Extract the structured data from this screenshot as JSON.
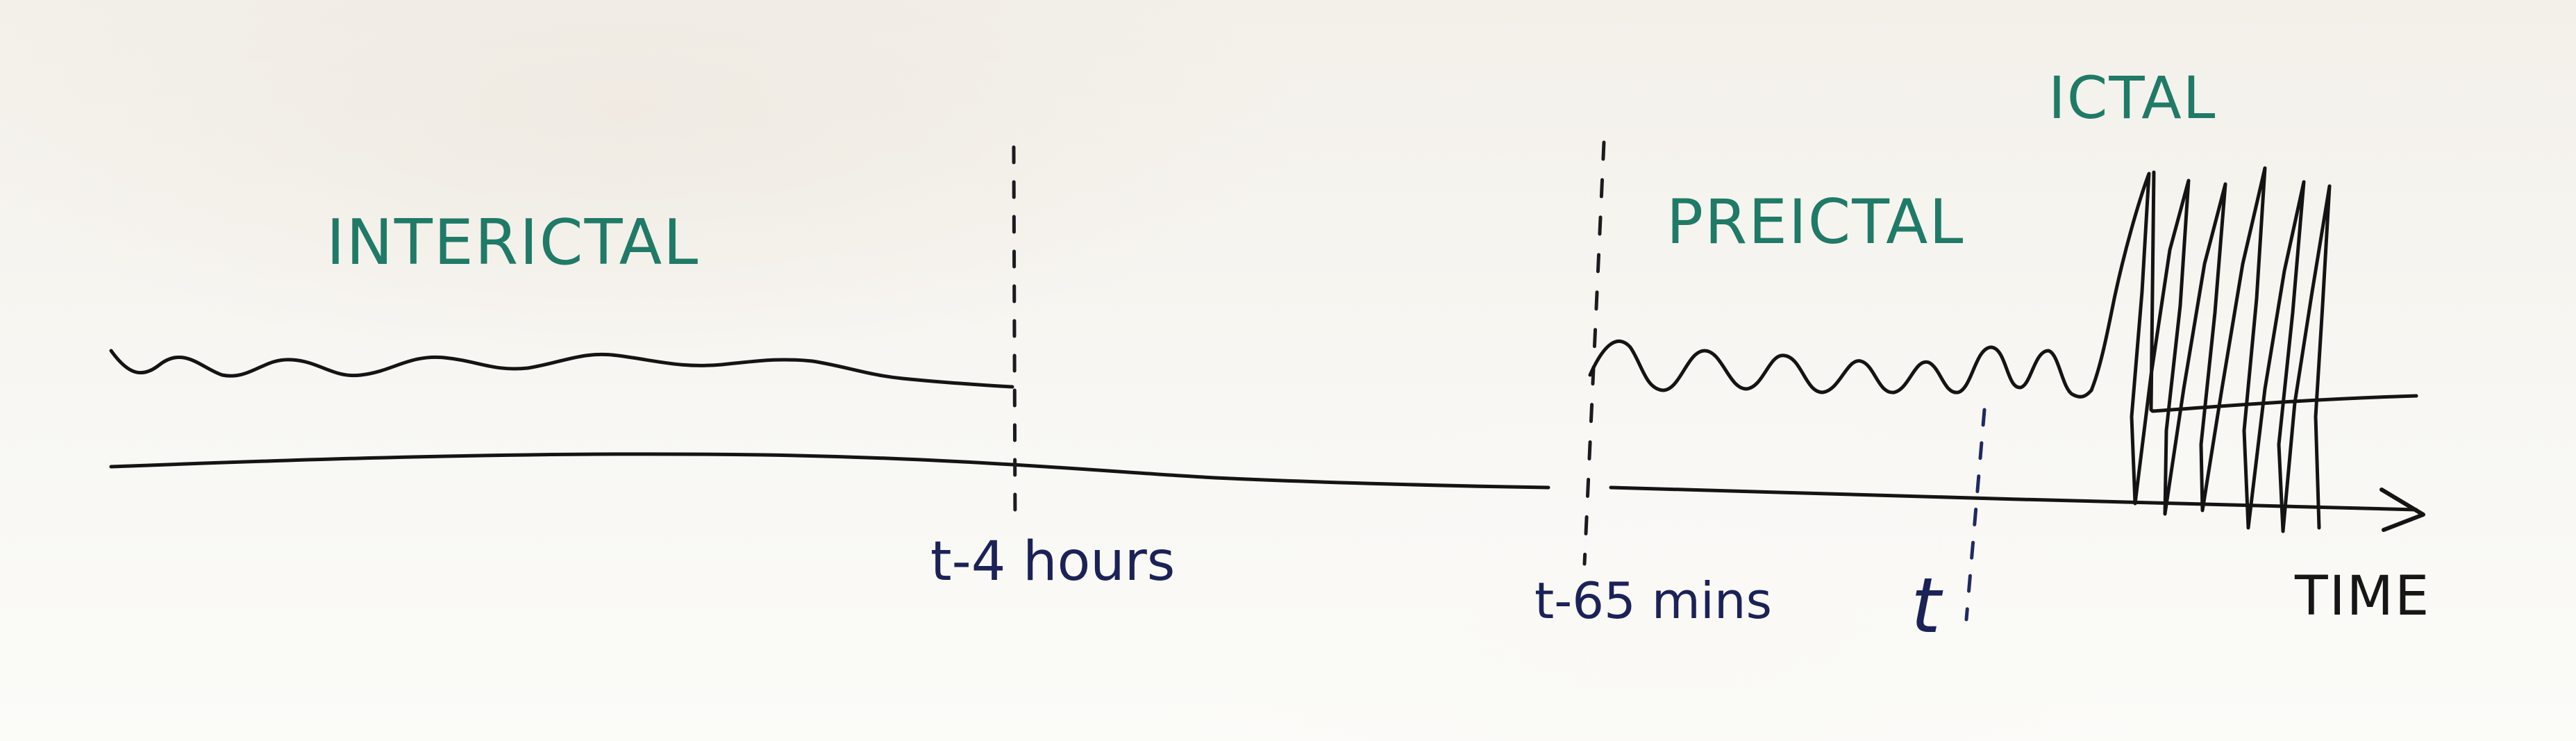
{
  "phases": {
    "interictal": "INTERICTAL",
    "preictal": "PREICTAL",
    "ictal": "ICTAL"
  },
  "time_markers": {
    "t_minus_4_hours": "t-4 hours",
    "t_minus_65_mins": "t-65 mins",
    "t": "t"
  },
  "axis": {
    "label": "TIME"
  },
  "colors": {
    "phase_label": "#1f7a67",
    "marker_label": "#1b2257",
    "ink": "#141414",
    "board": "#f6f4ef"
  }
}
